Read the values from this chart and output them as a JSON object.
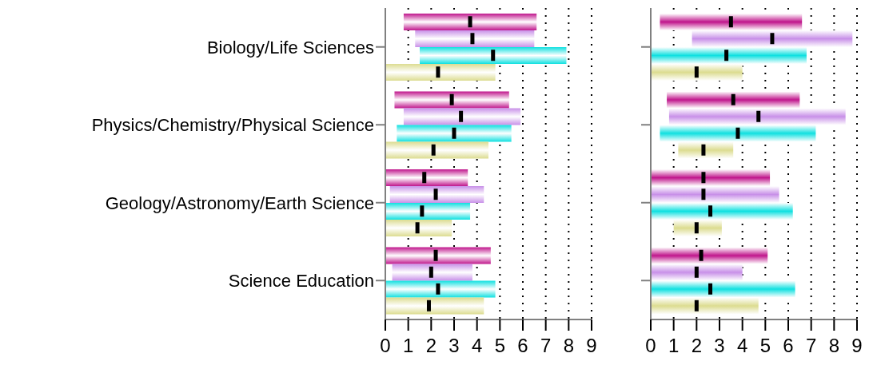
{
  "chart_data": [
    {
      "type": "bar",
      "orientation": "horizontal",
      "categories": [
        "Biology/Life Sciences",
        "Physics/Chemistry/Physical Science",
        "Geology/Astronomy/Earth Science",
        "Science Education"
      ],
      "series": [
        {
          "color": "#c0168c",
          "base": [
            0.8,
            0.4,
            0,
            0
          ],
          "values": [
            5.8,
            5.0,
            3.6,
            4.6
          ]
        },
        {
          "color": "#c890e8",
          "base": [
            1.3,
            0.8,
            0.2,
            0.3
          ],
          "values": [
            5.2,
            5.1,
            4.1,
            3.5
          ]
        },
        {
          "color": "#10e0e0",
          "base": [
            1.5,
            0.5,
            0,
            0
          ],
          "values": [
            6.4,
            5.0,
            3.7,
            4.8
          ]
        },
        {
          "color": "#dcdc90",
          "base": [
            0,
            0,
            0,
            0
          ],
          "values": [
            4.8,
            4.5,
            2.9,
            4.3
          ]
        },
        {
          "type": "scatter",
          "color": "#000000",
          "values": [
            3.7,
            2.9,
            1.7,
            2.2
          ]
        },
        {
          "type": "scatter",
          "color": "#000000",
          "values": [
            3.8,
            3.3,
            2.2,
            2.0
          ]
        },
        {
          "type": "scatter",
          "color": "#000000",
          "values": [
            4.7,
            3.0,
            1.6,
            2.3
          ]
        },
        {
          "type": "scatter",
          "color": "#000000",
          "values": [
            2.3,
            2.1,
            1.4,
            1.9
          ]
        }
      ],
      "xlim": [
        0,
        9
      ],
      "xticks": [
        0,
        1,
        2,
        3,
        4,
        5,
        6,
        7,
        8,
        9
      ],
      "grid": "x"
    },
    {
      "type": "bar",
      "orientation": "horizontal",
      "categories": [
        null,
        null,
        null,
        null
      ],
      "series": [
        {
          "color": "#c0168c",
          "base": [
            0.4,
            0.7,
            0,
            0
          ],
          "values": [
            6.2,
            5.8,
            5.2,
            5.1
          ]
        },
        {
          "color": "#c890e8",
          "base": [
            1.8,
            0.8,
            0,
            0
          ],
          "values": [
            7.0,
            7.7,
            5.6,
            4.0
          ]
        },
        {
          "color": "#10e0e0",
          "base": [
            0,
            0.4,
            0,
            0
          ],
          "values": [
            6.8,
            6.8,
            6.2,
            6.3
          ]
        },
        {
          "color": "#dcdc90",
          "base": [
            0,
            1.2,
            1.0,
            0
          ],
          "values": [
            4.0,
            2.4,
            2.1,
            4.7
          ]
        },
        {
          "type": "scatter",
          "color": "#000000",
          "values": [
            3.5,
            3.6,
            2.3,
            2.2
          ]
        },
        {
          "type": "scatter",
          "color": "#000000",
          "values": [
            5.3,
            4.7,
            2.3,
            2.0
          ]
        },
        {
          "type": "scatter",
          "color": "#000000",
          "values": [
            3.3,
            3.8,
            2.6,
            2.6
          ]
        },
        {
          "type": "scatter",
          "color": "#000000",
          "values": [
            2.0,
            2.3,
            2.0,
            2.0
          ]
        }
      ],
      "xlim": [
        0,
        9
      ],
      "xticks": [
        0,
        1,
        2,
        3,
        4,
        5,
        6,
        7,
        8,
        9
      ],
      "grid": "x",
      "tick_labels": "x"
    }
  ]
}
